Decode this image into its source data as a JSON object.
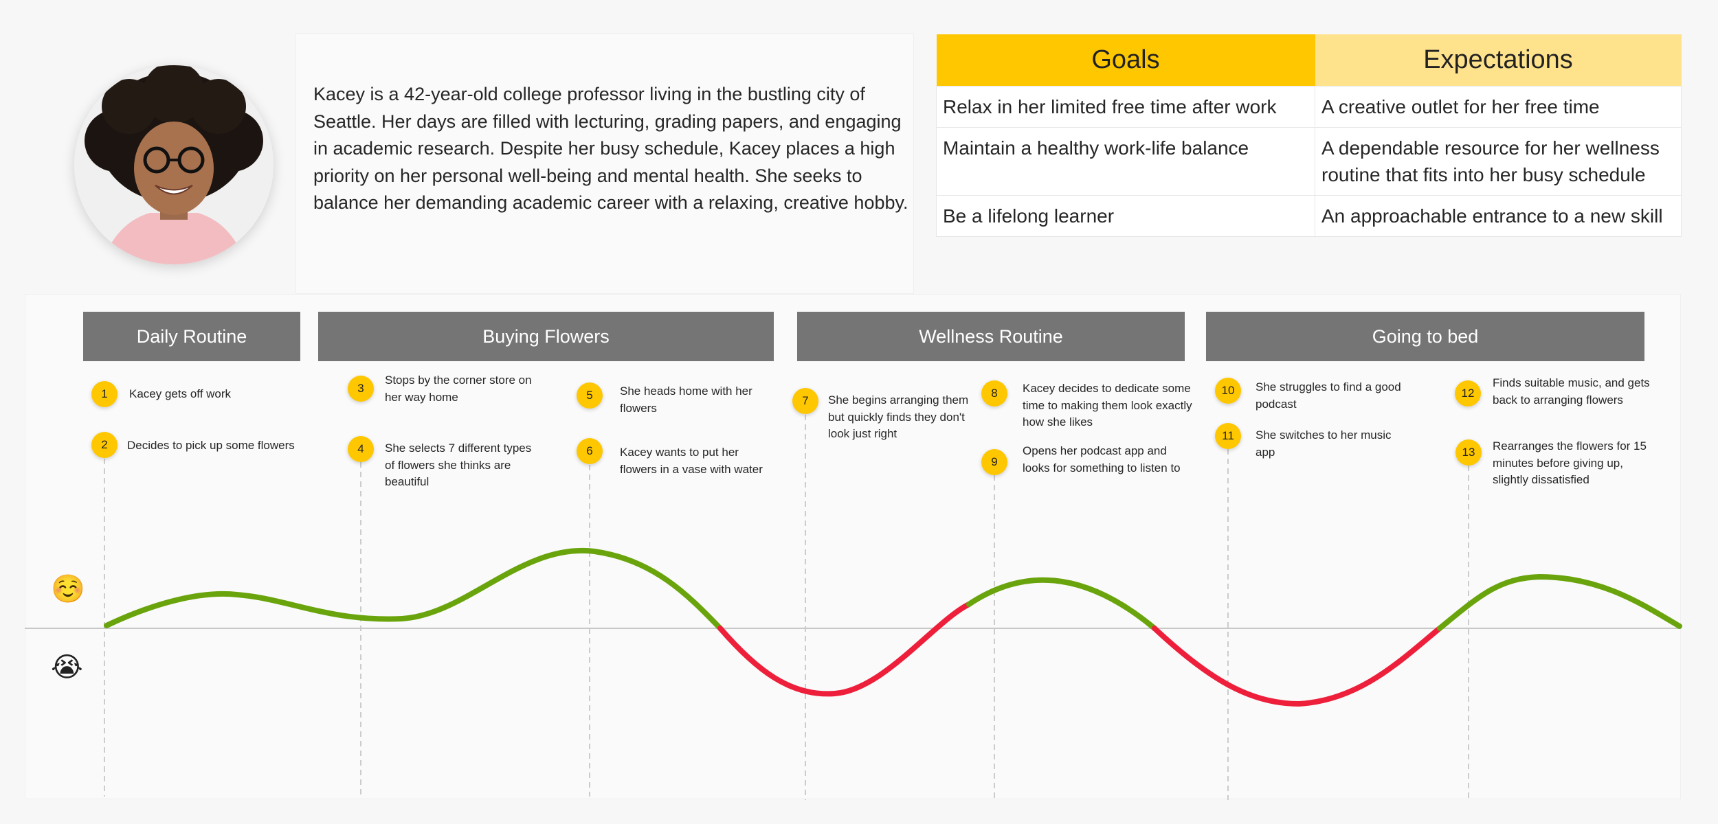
{
  "persona": {
    "bio": "Kacey is a 42-year-old college professor living in the bustling city of Seattle. Her days are filled with lecturing, grading papers, and engaging in academic research. Despite her busy schedule, Kacey places a high priority on her personal well-being and mental health. She seeks to balance her demanding academic career with a relaxing, creative hobby."
  },
  "table": {
    "headers": [
      "Goals",
      "Expectations"
    ],
    "rows": [
      [
        "Relax in her limited free time after work",
        "A creative outlet for her free time"
      ],
      [
        "Maintain a healthy work-life balance",
        "A dependable resource for her wellness routine that fits into her busy schedule"
      ],
      [
        "Be a lifelong learner",
        "An approachable entrance to a new skill"
      ]
    ]
  },
  "phases": [
    "Daily Routine",
    "Buying Flowers",
    "Wellness Routine",
    "Going to bed"
  ],
  "steps": [
    {
      "num": "1",
      "text": "Kacey gets off work"
    },
    {
      "num": "2",
      "text": "Decides to pick up some flowers"
    },
    {
      "num": "3",
      "text": "Stops by the corner store on her way home"
    },
    {
      "num": "4",
      "text": "She selects 7 different types of flowers she thinks are beautiful"
    },
    {
      "num": "5",
      "text": "She heads home with her flowers"
    },
    {
      "num": "6",
      "text": "Kacey wants to put her flowers in a vase with water"
    },
    {
      "num": "7",
      "text": "She begins arranging them but quickly finds they don't look just right"
    },
    {
      "num": "8",
      "text": "Kacey decides to dedicate some time to making them look exactly how she likes"
    },
    {
      "num": "9",
      "text": "Opens her podcast app and looks for something to listen to"
    },
    {
      "num": "10",
      "text": "She struggles to find a good podcast"
    },
    {
      "num": "11",
      "text": "She switches to her music app"
    },
    {
      "num": "12",
      "text": "Finds suitable music, and gets back to arranging flowers"
    },
    {
      "num": "13",
      "text": "Rearranges the flowers for 15 minutes before giving up, slightly dissatisfied"
    }
  ],
  "emotion": {
    "positive_emoji": "☺️",
    "negative_emoji": "😭",
    "positive_color": "#6aa40d",
    "negative_color": "#ee1f3b",
    "accent_color": "#ffc700"
  }
}
